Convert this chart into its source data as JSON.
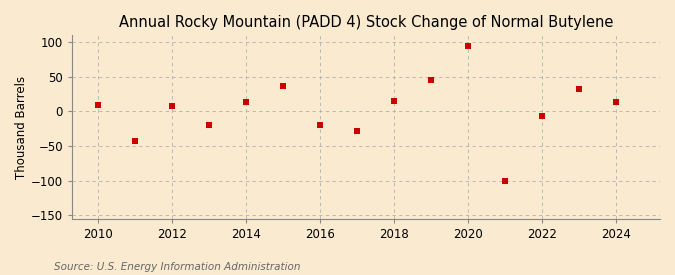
{
  "title": "Annual Rocky Mountain (PADD 4) Stock Change of Normal Butylene",
  "ylabel": "Thousand Barrels",
  "source": "Source: U.S. Energy Information Administration",
  "years": [
    2010,
    2011,
    2012,
    2013,
    2014,
    2015,
    2016,
    2017,
    2018,
    2019,
    2020,
    2021,
    2022,
    2023,
    2024
  ],
  "values": [
    10,
    -42,
    8,
    -20,
    13,
    37,
    -20,
    -28,
    15,
    45,
    95,
    -100,
    -7,
    33,
    13
  ],
  "marker_color": "#cc0000",
  "background_color": "#faebd0",
  "grid_color": "#b0b0b0",
  "ylim": [
    -155,
    110
  ],
  "yticks": [
    -150,
    -100,
    -50,
    0,
    50,
    100
  ],
  "xlim": [
    2009.3,
    2025.2
  ],
  "xticks": [
    2010,
    2012,
    2014,
    2016,
    2018,
    2020,
    2022,
    2024
  ],
  "title_fontsize": 10.5,
  "label_fontsize": 8.5,
  "source_fontsize": 7.5,
  "marker_size": 5
}
